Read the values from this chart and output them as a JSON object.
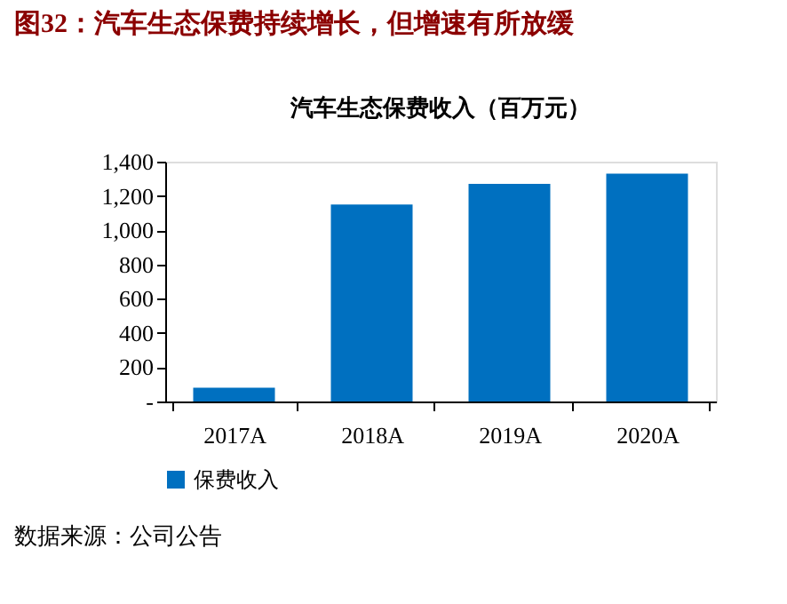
{
  "chart_data": {
    "type": "bar",
    "title": "图32：汽车生态保费持续增长，但增速有所放缓",
    "subtitle": "汽车生态保费收入（百万元）",
    "categories": [
      "2017A",
      "2018A",
      "2019A",
      "2020A"
    ],
    "series": [
      {
        "name": "保费收入",
        "color": "#0070c0",
        "values": [
          80,
          1150,
          1270,
          1330
        ]
      }
    ],
    "ylim": [
      0,
      1400
    ],
    "yticks": [
      {
        "value": 0,
        "label": "-"
      },
      200,
      400,
      600,
      800,
      {
        "value": 1000,
        "label": "1,000"
      },
      {
        "value": 1200,
        "label": "1,200"
      },
      {
        "value": 1400,
        "label": "1,400"
      }
    ],
    "grid": false,
    "legend": "bottom",
    "annotations": [
      "数据来源：公司公告"
    ]
  }
}
